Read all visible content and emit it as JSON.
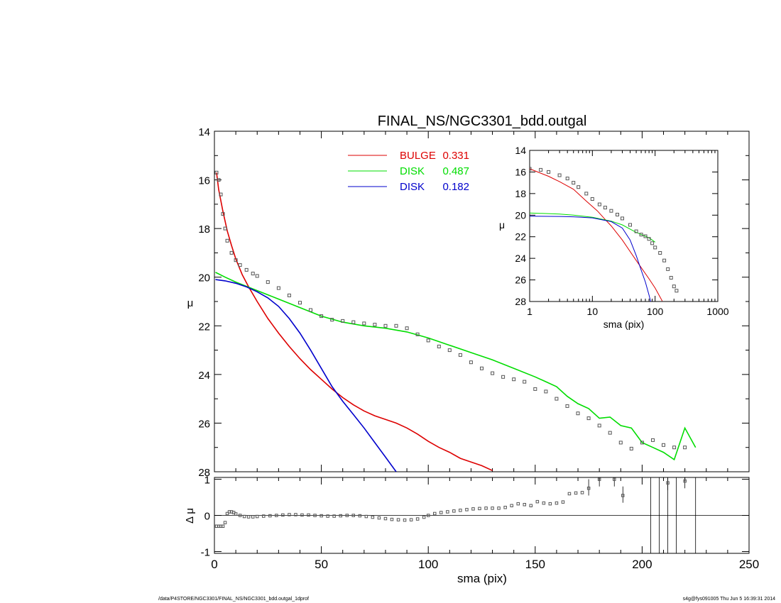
{
  "footer": {
    "left": "/data/P4STORE/NGC3301/FINAL_NS/NGC3301_bdd.outgal_1dprof",
    "right": "s4g@fys091005  Thu Jun  5 16:39:31 2014"
  },
  "colors": {
    "bulge": "#dd0000",
    "disk1": "#00dd00",
    "disk2": "#0000cc",
    "data": "#555555"
  },
  "chart_data": [
    {
      "type": "line",
      "title": "FINAL_NS/NGC3301_bdd.outgal",
      "xlabel": "",
      "ylabel": "μ",
      "xlim": [
        0,
        250
      ],
      "ylim": [
        28,
        14
      ],
      "yreversed": true,
      "xticks": [
        0,
        50,
        100,
        150,
        200,
        250
      ],
      "yticks": [
        14,
        16,
        18,
        20,
        22,
        24,
        26,
        28
      ],
      "xtick_labels": [
        "",
        "",
        "",
        "",
        "",
        ""
      ],
      "ytick_labels": [
        "14",
        "16",
        "18",
        "20",
        "22",
        "24",
        "26",
        "28"
      ],
      "legend_position": "top-center",
      "legend": [
        {
          "label": "BULGE",
          "value": "0.331",
          "color": "#dd0000"
        },
        {
          "label": "DISK",
          "value": "0.487",
          "color": "#00dd00"
        },
        {
          "label": "DISK",
          "value": "0.182",
          "color": "#0000cc"
        }
      ],
      "series": [
        {
          "name": "BULGE",
          "color": "#dd0000",
          "x": [
            1,
            2,
            4,
            6,
            8,
            10,
            13,
            16,
            20,
            25,
            30,
            35,
            40,
            45,
            50,
            55,
            60,
            65,
            70,
            75,
            80,
            85,
            90,
            95,
            100,
            105,
            110,
            115,
            120,
            125,
            130
          ],
          "y": [
            15.7,
            16.4,
            17.3,
            18.1,
            18.7,
            19.25,
            19.9,
            20.4,
            21.0,
            21.7,
            22.3,
            22.85,
            23.35,
            23.8,
            24.2,
            24.6,
            24.95,
            25.25,
            25.5,
            25.7,
            25.85,
            26.0,
            26.2,
            26.45,
            26.75,
            27.0,
            27.2,
            27.45,
            27.6,
            27.75,
            27.95
          ]
        },
        {
          "name": "DISK",
          "color": "#00dd00",
          "x": [
            0.5,
            5,
            10,
            20,
            30,
            40,
            50,
            60,
            70,
            80,
            90,
            100,
            110,
            120,
            130,
            140,
            150,
            155,
            160,
            165,
            170,
            175,
            180,
            185,
            190,
            195,
            200,
            205,
            210,
            215,
            220,
            225
          ],
          "y": [
            19.8,
            20.0,
            20.2,
            20.55,
            20.9,
            21.25,
            21.6,
            21.85,
            22.0,
            22.1,
            22.25,
            22.5,
            22.8,
            23.1,
            23.4,
            23.75,
            24.1,
            24.3,
            24.5,
            24.9,
            25.2,
            25.4,
            25.8,
            25.75,
            26.1,
            26.2,
            26.8,
            27.0,
            27.2,
            27.5,
            26.2,
            27.0
          ]
        },
        {
          "name": "DISK",
          "color": "#0000cc",
          "x": [
            0.5,
            5,
            10,
            15,
            20,
            25,
            30,
            35,
            40,
            45,
            50,
            55,
            60,
            65,
            70,
            75,
            80,
            85
          ],
          "y": [
            20.1,
            20.15,
            20.25,
            20.4,
            20.6,
            20.85,
            21.2,
            21.7,
            22.3,
            23.0,
            23.75,
            24.5,
            25.1,
            25.65,
            26.2,
            26.8,
            27.4,
            28.0
          ]
        },
        {
          "name": "",
          "type": "scatter",
          "color": "#555555",
          "x": [
            1,
            2,
            3,
            4,
            5,
            6,
            8,
            10,
            12,
            15,
            18,
            20,
            25,
            30,
            35,
            40,
            45,
            50,
            55,
            60,
            65,
            70,
            75,
            80,
            85,
            90,
            95,
            100,
            105,
            110,
            115,
            120,
            125,
            130,
            135,
            140,
            145,
            150,
            155,
            160,
            165,
            170,
            175,
            180,
            185,
            190,
            195,
            200,
            205,
            210,
            215,
            220
          ],
          "y": [
            15.7,
            16.0,
            16.6,
            17.4,
            18.0,
            18.5,
            19.0,
            19.3,
            19.5,
            19.7,
            19.85,
            19.95,
            20.2,
            20.45,
            20.75,
            21.05,
            21.35,
            21.6,
            21.75,
            21.8,
            21.85,
            21.9,
            21.95,
            22.0,
            22.0,
            22.1,
            22.35,
            22.6,
            22.85,
            23.0,
            23.2,
            23.5,
            23.75,
            23.95,
            24.1,
            24.2,
            24.3,
            24.6,
            24.7,
            25.0,
            25.3,
            25.6,
            25.8,
            26.1,
            26.4,
            26.8,
            27.05,
            26.8,
            26.7,
            26.9,
            27.0,
            27.0
          ]
        }
      ]
    },
    {
      "type": "line",
      "title": "",
      "xlabel": "sma (pix)",
      "ylabel": "μ",
      "xscale": "log",
      "xlim": [
        1,
        1000
      ],
      "ylim": [
        28,
        14
      ],
      "yreversed": true,
      "xtick_labels": [
        "1",
        "10",
        "100",
        "1000"
      ],
      "ytick_labels": [
        "14",
        "16",
        "18",
        "20",
        "22",
        "24",
        "26",
        "28"
      ],
      "series": [
        {
          "name": "",
          "color": "#dd0000",
          "x": [
            1,
            2,
            3,
            5,
            8,
            12,
            16,
            20,
            30,
            50,
            80,
            100,
            130
          ],
          "y": [
            15.7,
            16.4,
            16.9,
            17.6,
            18.7,
            19.6,
            20.4,
            21.0,
            22.3,
            24.2,
            25.9,
            26.75,
            27.95
          ]
        },
        {
          "name": "",
          "color": "#00dd00",
          "x": [
            1,
            3,
            5,
            10,
            20,
            30,
            50,
            80,
            100
          ],
          "y": [
            19.8,
            19.9,
            20.0,
            20.2,
            20.55,
            20.9,
            21.6,
            22.1,
            22.5
          ]
        },
        {
          "name": "",
          "color": "#0000cc",
          "x": [
            1,
            3,
            5,
            10,
            20,
            30,
            40,
            50,
            60,
            70,
            80,
            85
          ],
          "y": [
            20.1,
            20.12,
            20.15,
            20.25,
            20.6,
            21.2,
            22.3,
            23.75,
            25.1,
            26.2,
            27.4,
            28.0
          ]
        },
        {
          "name": "",
          "type": "scatter",
          "color": "#555555",
          "x": [
            1,
            1.5,
            2,
            3,
            4,
            5,
            6,
            8,
            10,
            13,
            16,
            20,
            25,
            30,
            40,
            50,
            60,
            70,
            80,
            90,
            100,
            120,
            140,
            160,
            180,
            200,
            220
          ],
          "y": [
            15.7,
            15.8,
            16.0,
            16.3,
            16.6,
            17.0,
            17.4,
            18.0,
            18.5,
            19.0,
            19.3,
            19.6,
            19.95,
            20.3,
            20.9,
            21.5,
            21.8,
            21.95,
            22.2,
            22.6,
            23.0,
            23.5,
            24.2,
            25.0,
            25.8,
            26.6,
            27.0
          ]
        }
      ]
    },
    {
      "type": "scatter",
      "title": "",
      "xlabel": "sma (pix)",
      "ylabel": "Δ μ",
      "xlim": [
        0,
        250
      ],
      "ylim": [
        -1,
        1
      ],
      "xticks": [
        0,
        50,
        100,
        150,
        200,
        250
      ],
      "yticks": [
        -1,
        0,
        1
      ],
      "xtick_labels": [
        "0",
        "50",
        "100",
        "150",
        "200",
        "250"
      ],
      "ytick_labels": [
        "-1",
        "0",
        "1"
      ],
      "x": [
        1,
        2,
        3,
        4,
        5,
        6,
        7,
        8,
        9,
        10,
        12,
        14,
        16,
        18,
        20,
        23,
        26,
        29,
        32,
        35,
        38,
        41,
        44,
        47,
        50,
        53,
        56,
        59,
        62,
        65,
        68,
        71,
        74,
        77,
        80,
        83,
        86,
        89,
        92,
        95,
        98,
        100,
        103,
        106,
        109,
        112,
        115,
        118,
        121,
        124,
        127,
        130,
        133,
        136,
        139,
        142,
        145,
        148,
        151,
        154,
        157,
        160,
        163,
        166,
        169,
        172,
        175,
        180,
        187,
        191,
        212,
        220
      ],
      "y": [
        -0.3,
        -0.3,
        -0.3,
        -0.3,
        -0.2,
        0.05,
        0.1,
        0.1,
        0.08,
        0.04,
        0.0,
        -0.03,
        -0.04,
        -0.04,
        -0.03,
        -0.02,
        -0.01,
        0.0,
        0.01,
        0.02,
        0.02,
        0.01,
        0.01,
        0.0,
        -0.01,
        -0.02,
        -0.02,
        -0.01,
        0.0,
        0.0,
        -0.01,
        -0.03,
        -0.05,
        -0.07,
        -0.09,
        -0.11,
        -0.12,
        -0.13,
        -0.12,
        -0.1,
        -0.05,
        0.0,
        0.05,
        0.08,
        0.1,
        0.12,
        0.14,
        0.16,
        0.18,
        0.19,
        0.2,
        0.2,
        0.2,
        0.22,
        0.27,
        0.32,
        0.3,
        0.27,
        0.38,
        0.34,
        0.32,
        0.34,
        0.37,
        0.6,
        0.62,
        0.63,
        0.75,
        1.0,
        1.0,
        0.55,
        0.9,
        0.95
      ],
      "vertical_lines_x": [
        204,
        208,
        212,
        216,
        225
      ]
    }
  ]
}
